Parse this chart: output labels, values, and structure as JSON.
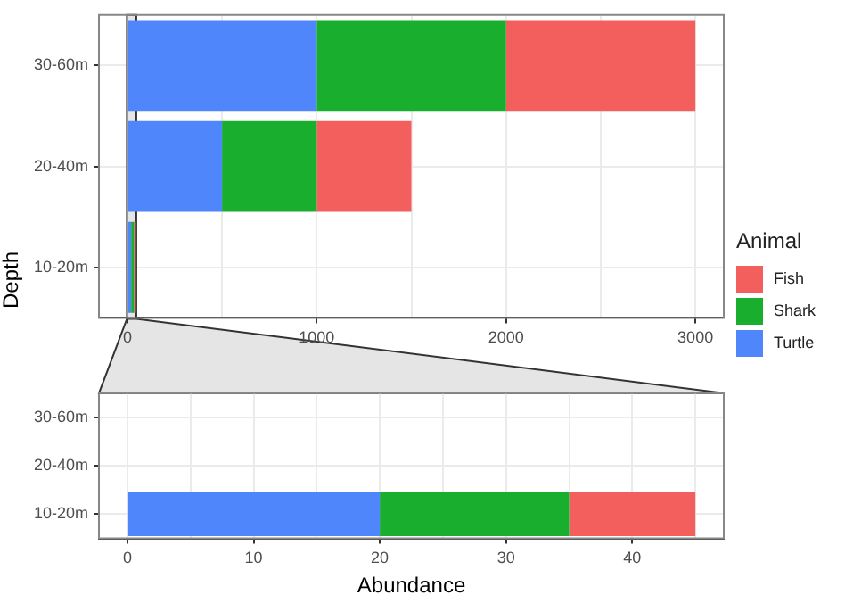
{
  "chart_data": [
    {
      "type": "bar",
      "orientation": "horizontal",
      "stacked": true,
      "categories": [
        "30-60m",
        "20-40m",
        "10-20m"
      ],
      "series": [
        {
          "name": "Turtle",
          "color": "#4f86fb",
          "values": [
            1000,
            500,
            20
          ]
        },
        {
          "name": "Shark",
          "color": "#19ae2e",
          "values": [
            1000,
            500,
            15
          ]
        },
        {
          "name": "Fish",
          "color": "#f25f5c",
          "values": [
            1000,
            500,
            10
          ]
        }
      ],
      "xlim": [
        -150,
        3150
      ],
      "xticks": [
        0,
        {
          "value": 500,
          "label": null
        },
        1000,
        {
          "value": 1500,
          "label": null
        },
        2000,
        {
          "value": 2500,
          "label": null
        },
        3000
      ],
      "ylabel": "Depth",
      "legend": "right",
      "legend_title": "Animal",
      "grid": true,
      "bands": [
        {
          "axis": "x",
          "from": -2.25,
          "to": 47.25,
          "color": "#e5e5e5"
        }
      ]
    },
    {
      "type": "bar",
      "orientation": "horizontal",
      "stacked": true,
      "categories": [
        "30-60m",
        "20-40m",
        "10-20m"
      ],
      "series": [
        {
          "color": "#4f86fb",
          "values": [
            null,
            null,
            20
          ]
        },
        {
          "color": "#19ae2e",
          "values": [
            null,
            null,
            15
          ]
        },
        {
          "color": "#f25f5c",
          "values": [
            null,
            null,
            10
          ]
        }
      ],
      "xlim": [
        -2.25,
        47.25
      ],
      "xticks": [
        0,
        {
          "value": 5,
          "label": null
        },
        10,
        {
          "value": 15,
          "label": null
        },
        20,
        {
          "value": 25,
          "label": null
        },
        30,
        {
          "value": 35,
          "label": null
        },
        40,
        {
          "value": 45,
          "label": null
        }
      ],
      "xlabel": "Abundance",
      "grid": true
    }
  ]
}
